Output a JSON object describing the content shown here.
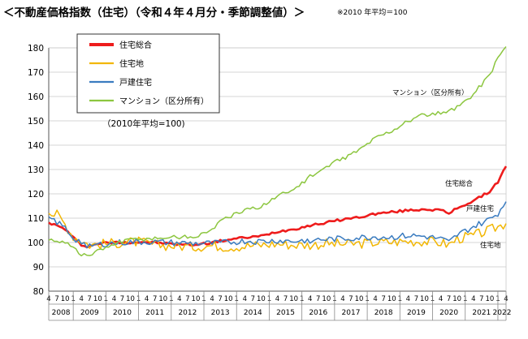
{
  "header": {
    "title": "＜不動産価格指数（住宅）（令和４年４月分・季節調整値）＞",
    "note": "※2010 年平均＝100"
  },
  "chart_data": {
    "type": "line",
    "title": "＜不動産価格指数（住宅）（令和４年４月分・季節調整値）＞",
    "subtitle": "※2010 年平均＝100",
    "annotation": "（2010年平均=100)",
    "ylim": [
      80,
      180
    ],
    "yticks": [
      80,
      90,
      100,
      110,
      120,
      130,
      140,
      150,
      160,
      170,
      180
    ],
    "grid": true,
    "legend_position": "top-left",
    "x_start": "2008-04",
    "x_end": "2022-04",
    "x_tick_labels": [
      "4",
      "7",
      "10",
      "1",
      "4",
      "7",
      "10",
      "1",
      "4",
      "7",
      "10",
      "1",
      "4",
      "7",
      "10",
      "1",
      "4",
      "7",
      "10",
      "1",
      "4",
      "7",
      "10",
      "1",
      "4",
      "7",
      "10",
      "1",
      "4",
      "7",
      "10",
      "1",
      "4",
      "7",
      "10",
      "1",
      "4",
      "7",
      "10",
      "1",
      "4",
      "7",
      "10",
      "1",
      "4",
      "7",
      "10",
      "1",
      "4",
      "7",
      "10",
      "1",
      "4",
      "7",
      "10",
      "1",
      "4"
    ],
    "year_labels": [
      "2008",
      "2009",
      "2010",
      "2011",
      "2012",
      "2013",
      "2014",
      "2015",
      "2016",
      "2017",
      "2018",
      "2019",
      "2020",
      "2021",
      "2022"
    ],
    "series": [
      {
        "name": "住宅総合",
        "end_label": "住宅総合",
        "color": "#ee1c1c",
        "width": 2.6,
        "anchors": [
          [
            "2008-04",
            108.2
          ],
          [
            "2008-10",
            105.5
          ],
          [
            "2009-01",
            102
          ],
          [
            "2009-04",
            99
          ],
          [
            "2009-07",
            98.3
          ],
          [
            "2009-10",
            99.6
          ],
          [
            "2010-04",
            100
          ],
          [
            "2010-10",
            100.1
          ],
          [
            "2011-04",
            100.2
          ],
          [
            "2011-10",
            99.7
          ],
          [
            "2012-04",
            99.2
          ],
          [
            "2012-10",
            99.1
          ],
          [
            "2013-04",
            100
          ],
          [
            "2013-10",
            101.2
          ],
          [
            "2014-04",
            102
          ],
          [
            "2014-10",
            102.6
          ],
          [
            "2015-04",
            104.5
          ],
          [
            "2015-10",
            105.5
          ],
          [
            "2016-04",
            107
          ],
          [
            "2016-10",
            108.2
          ],
          [
            "2017-04",
            109.5
          ],
          [
            "2017-10",
            110.4
          ],
          [
            "2018-04",
            111.8
          ],
          [
            "2018-10",
            112.5
          ],
          [
            "2019-04",
            113.2
          ],
          [
            "2019-10",
            113.7
          ],
          [
            "2020-04",
            113.3
          ],
          [
            "2020-07",
            111.8
          ],
          [
            "2020-10",
            114.2
          ],
          [
            "2021-04",
            117
          ],
          [
            "2021-10",
            121
          ],
          [
            "2022-01",
            125
          ],
          [
            "2022-04",
            131.3
          ]
        ],
        "jitter": 0.5
      },
      {
        "name": "住宅地",
        "end_label": "住宅地",
        "color": "#f2b705",
        "width": 1.5,
        "anchors": [
          [
            "2008-04",
            112
          ],
          [
            "2008-07",
            111.5
          ],
          [
            "2008-10",
            107.5
          ],
          [
            "2009-01",
            102.5
          ],
          [
            "2009-07",
            99
          ],
          [
            "2010-01",
            99.5
          ],
          [
            "2010-07",
            100
          ],
          [
            "2011-01",
            100.3
          ],
          [
            "2011-07",
            99
          ],
          [
            "2012-04",
            98.5
          ],
          [
            "2012-10",
            98.3
          ],
          [
            "2013-04",
            98.8
          ],
          [
            "2013-10",
            98.2
          ],
          [
            "2014-04",
            98.5
          ],
          [
            "2014-10",
            99
          ],
          [
            "2015-04",
            99.5
          ],
          [
            "2015-10",
            99
          ],
          [
            "2016-04",
            99
          ],
          [
            "2016-10",
            99.5
          ],
          [
            "2017-04",
            99.3
          ],
          [
            "2017-10",
            99.5
          ],
          [
            "2018-04",
            100
          ],
          [
            "2018-10",
            100.2
          ],
          [
            "2019-04",
            100.5
          ],
          [
            "2019-10",
            100.5
          ],
          [
            "2020-04",
            100
          ],
          [
            "2020-07",
            99
          ],
          [
            "2020-10",
            101.5
          ],
          [
            "2021-04",
            102.8
          ],
          [
            "2021-10",
            105
          ],
          [
            "2022-01",
            106.5
          ],
          [
            "2022-04",
            107.8
          ]
        ],
        "jitter": 2.1
      },
      {
        "name": "戸建住宅",
        "end_label": "戸建住宅",
        "color": "#3b7cc0",
        "width": 1.5,
        "anchors": [
          [
            "2008-04",
            110.5
          ],
          [
            "2008-10",
            106
          ],
          [
            "2009-01",
            101.8
          ],
          [
            "2009-07",
            98.5
          ],
          [
            "2010-01",
            99.5
          ],
          [
            "2010-07",
            100
          ],
          [
            "2011-04",
            100.3
          ],
          [
            "2011-10",
            100
          ],
          [
            "2012-04",
            99.8
          ],
          [
            "2012-10",
            99.6
          ],
          [
            "2013-04",
            99.6
          ],
          [
            "2013-10",
            100
          ],
          [
            "2014-04",
            100.6
          ],
          [
            "2014-10",
            100.4
          ],
          [
            "2015-04",
            100.8
          ],
          [
            "2015-10",
            100.5
          ],
          [
            "2016-04",
            101
          ],
          [
            "2016-10",
            101.3
          ],
          [
            "2017-04",
            101.5
          ],
          [
            "2017-10",
            102
          ],
          [
            "2018-04",
            102.3
          ],
          [
            "2018-10",
            102.2
          ],
          [
            "2019-04",
            102.8
          ],
          [
            "2019-10",
            102.5
          ],
          [
            "2020-04",
            101.5
          ],
          [
            "2020-07",
            100
          ],
          [
            "2020-10",
            103
          ],
          [
            "2021-04",
            106.5
          ],
          [
            "2021-10",
            109.5
          ],
          [
            "2022-01",
            112
          ],
          [
            "2022-04",
            116.8
          ]
        ],
        "jitter": 1.3
      },
      {
        "name": "マンション（区分所有）",
        "end_label": "マンション（区分所有）",
        "color": "#8cc63f",
        "width": 1.5,
        "anchors": [
          [
            "2008-04",
            101
          ],
          [
            "2008-10",
            100.5
          ],
          [
            "2009-01",
            98
          ],
          [
            "2009-04",
            95
          ],
          [
            "2009-07",
            94.6
          ],
          [
            "2009-10",
            96.5
          ],
          [
            "2010-04",
            99.5
          ],
          [
            "2010-10",
            101.2
          ],
          [
            "2011-04",
            101.6
          ],
          [
            "2011-10",
            102
          ],
          [
            "2012-04",
            102.3
          ],
          [
            "2012-10",
            102.5
          ],
          [
            "2013-01",
            103.5
          ],
          [
            "2013-04",
            106
          ],
          [
            "2013-10",
            110.5
          ],
          [
            "2014-04",
            113
          ],
          [
            "2014-10",
            115
          ],
          [
            "2015-04",
            119
          ],
          [
            "2015-10",
            122
          ],
          [
            "2016-04",
            127
          ],
          [
            "2016-10",
            131
          ],
          [
            "2017-04",
            134.5
          ],
          [
            "2017-10",
            138
          ],
          [
            "2018-04",
            143
          ],
          [
            "2018-10",
            146
          ],
          [
            "2019-04",
            150
          ],
          [
            "2019-10",
            152.5
          ],
          [
            "2020-04",
            153
          ],
          [
            "2020-07",
            153.5
          ],
          [
            "2020-10",
            155.5
          ],
          [
            "2021-04",
            161
          ],
          [
            "2021-10",
            169
          ],
          [
            "2022-01",
            176
          ],
          [
            "2022-04",
            180.5
          ]
        ],
        "jitter": 0.9
      }
    ]
  }
}
